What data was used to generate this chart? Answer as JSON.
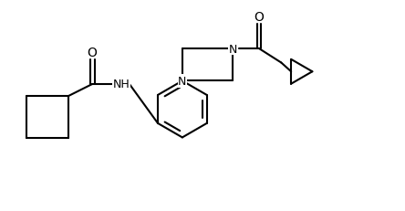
{
  "background_color": "#ffffff",
  "line_color": "#000000",
  "line_width": 1.5,
  "font_size": 9,
  "figsize": [
    4.44,
    2.32
  ],
  "dpi": 100,
  "xlim": [
    0,
    10
  ],
  "ylim": [
    0,
    5.2
  ]
}
